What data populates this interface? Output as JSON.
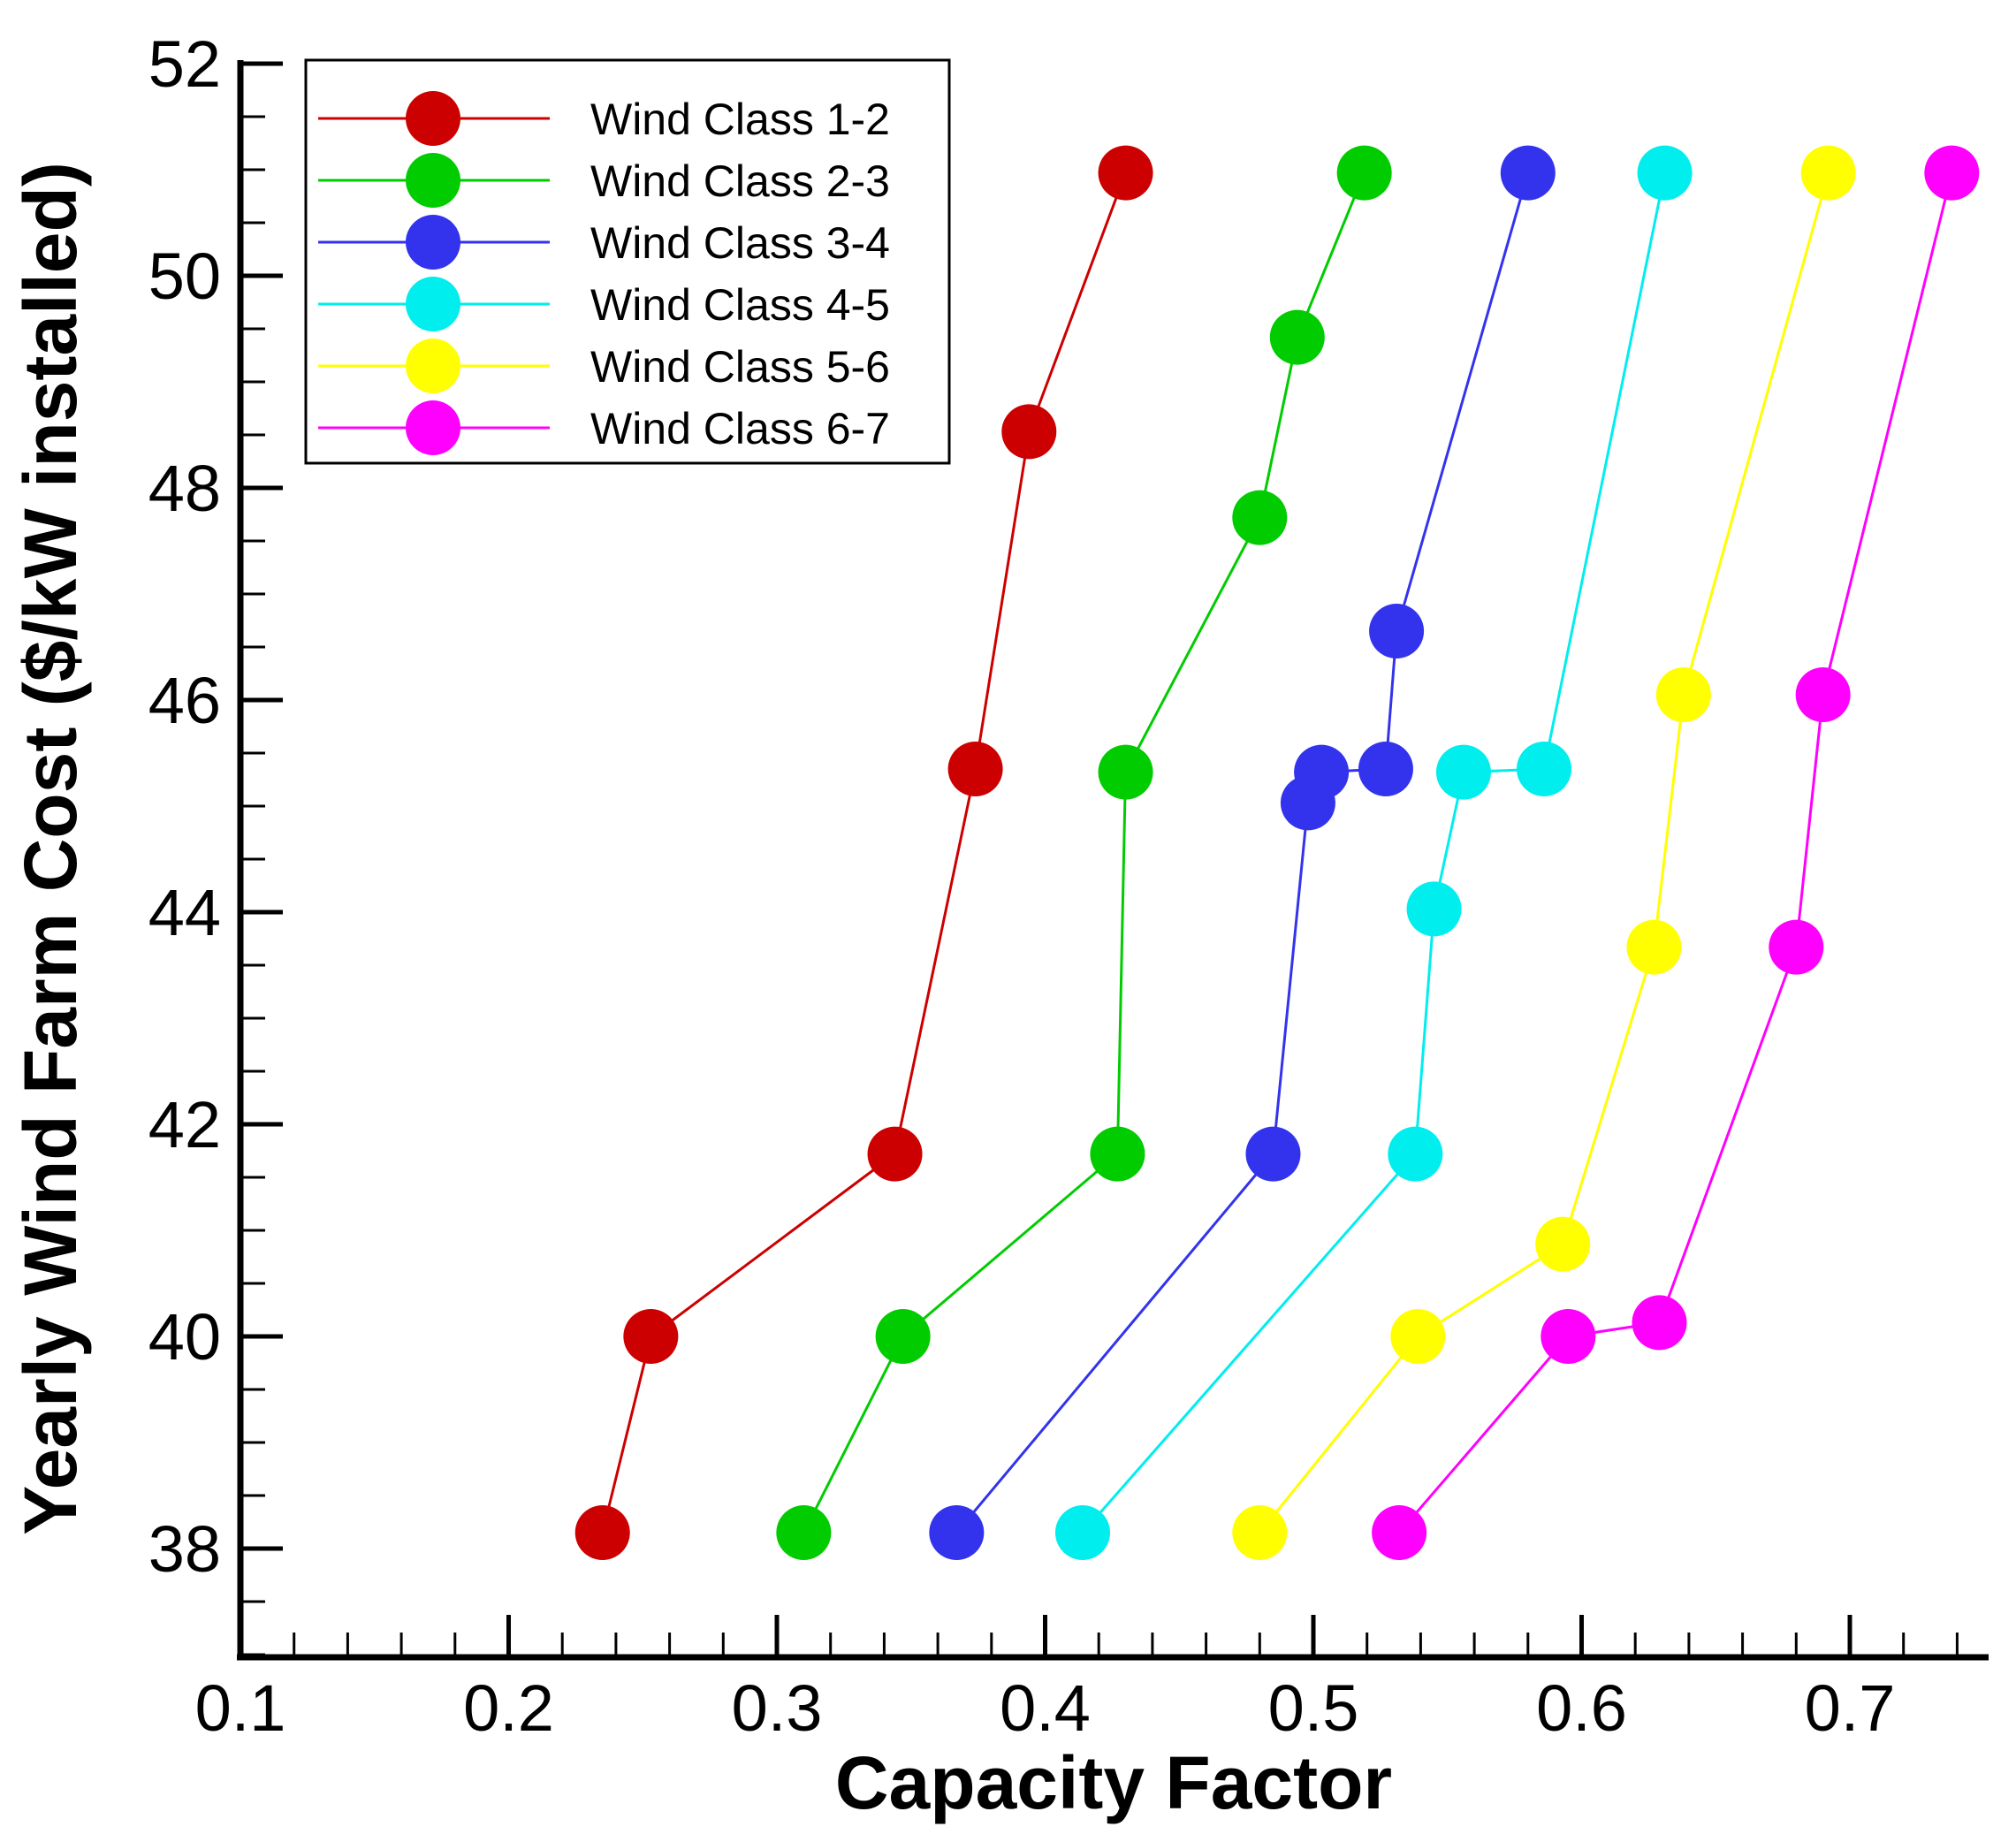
{
  "chart_data": {
    "type": "line",
    "title": "",
    "xlabel": "Capacity Factor",
    "ylabel": "Yearly Wind Farm Cost ($/kW installed)",
    "xlim": [
      0.1,
      0.75
    ],
    "ylim": [
      37,
      52
    ],
    "xticks": [
      0.1,
      0.2,
      0.3,
      0.4,
      0.5,
      0.6,
      0.7
    ],
    "xtick_labels": [
      "0.1",
      "0.2",
      "0.3",
      "0.4",
      "0.5",
      "0.6",
      "0.7"
    ],
    "yticks": [
      38,
      40,
      42,
      44,
      46,
      48,
      50,
      52
    ],
    "ytick_labels": [
      "38",
      "40",
      "42",
      "44",
      "46",
      "48",
      "50",
      "52"
    ],
    "grid": false,
    "legend_position": "top-left",
    "series": [
      {
        "name": "Wind Class 1-2",
        "color": "#cc0000",
        "x": [
          0.235,
          0.253,
          0.344,
          0.374,
          0.394,
          0.43
        ],
        "y": [
          38.15,
          40.0,
          41.72,
          45.35,
          48.53,
          50.97
        ]
      },
      {
        "name": "Wind Class 2-3",
        "color": "#00cc00",
        "x": [
          0.31,
          0.347,
          0.427,
          0.43,
          0.48,
          0.494,
          0.519
        ],
        "y": [
          38.15,
          40.0,
          41.72,
          45.32,
          47.72,
          49.42,
          50.97
        ]
      },
      {
        "name": "Wind Class 3-4",
        "color": "#3333ee",
        "x": [
          0.367,
          0.485,
          0.498,
          0.503,
          0.527,
          0.531,
          0.58
        ],
        "y": [
          38.15,
          41.72,
          45.03,
          45.32,
          45.35,
          46.65,
          50.97
        ]
      },
      {
        "name": "Wind Class 4-5",
        "color": "#00eeee",
        "x": [
          0.414,
          0.538,
          0.545,
          0.556,
          0.586,
          0.631
        ],
        "y": [
          38.15,
          41.72,
          44.03,
          45.32,
          45.35,
          50.97
        ]
      },
      {
        "name": "Wind Class 5-6",
        "color": "#ffff00",
        "x": [
          0.48,
          0.539,
          0.593,
          0.627,
          0.638,
          0.692
        ],
        "y": [
          38.15,
          40.0,
          40.87,
          43.67,
          46.05,
          50.97
        ]
      },
      {
        "name": "Wind Class 6-7",
        "color": "#ff00ff",
        "x": [
          0.532,
          0.595,
          0.629,
          0.68,
          0.69,
          0.738
        ],
        "y": [
          38.15,
          40.0,
          40.13,
          43.67,
          46.05,
          50.97
        ]
      }
    ]
  }
}
